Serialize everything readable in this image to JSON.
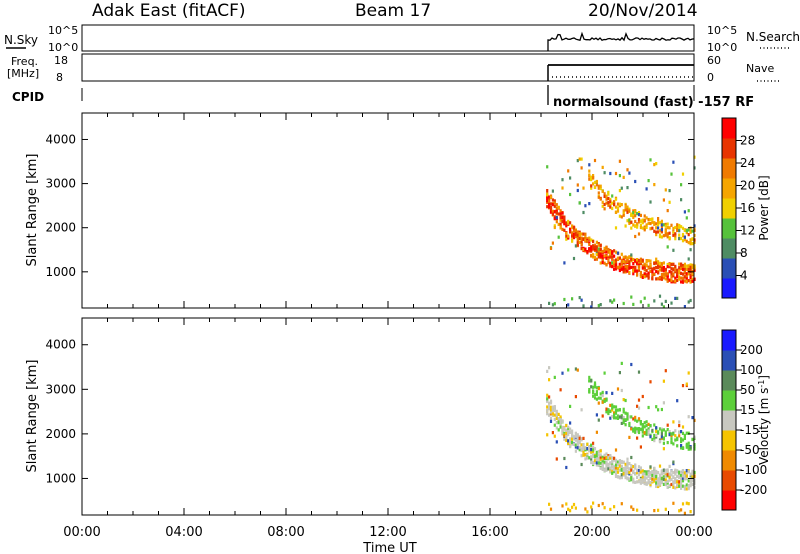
{
  "header": {
    "station": "Adak East (fitACF)",
    "beam": "Beam 17",
    "date": "20/Nov/2014"
  },
  "sky_panel": {
    "left_label": "N.Sky",
    "right_label": "N.Search",
    "left_ticks": [
      "10^5",
      "10^0"
    ],
    "right_ticks": [
      "10^5",
      "10^0"
    ]
  },
  "freq_panel": {
    "left_label_line1": "Freq.",
    "left_label_line2": "[MHz]",
    "right_label": "Nave",
    "left_ticks": [
      "18",
      "8"
    ],
    "right_ticks": [
      "60",
      "0"
    ]
  },
  "cpid": {
    "label": "CPID",
    "text": "normalsound (fast) -157 RF"
  },
  "colors": {
    "power": [
      "#1a1aff",
      "#2a4fb5",
      "#4e8c63",
      "#56c23b",
      "#f0d000",
      "#f5a500",
      "#f07a00",
      "#e83400",
      "#ff0000"
    ],
    "velocity": [
      "#1a1aff",
      "#2a4fb5",
      "#5a8a5a",
      "#5ccf3a",
      "#c8c8c0",
      "#f5c400",
      "#f08a00",
      "#e84a00",
      "#ff0000"
    ]
  },
  "chart_data": [
    {
      "type": "heatmap",
      "name": "power-panel",
      "ylabel": "Slant Range [km]",
      "yticks": [
        "1000",
        "2000",
        "3000",
        "4000"
      ],
      "yticks_values": [
        1000,
        2000,
        3000,
        4000
      ],
      "ylim": [
        180,
        4600
      ],
      "xlim": [
        0,
        24
      ],
      "colorbar_label": "Power [dB]",
      "colorbar_ticks": [
        "4",
        "8",
        "12",
        "16",
        "20",
        "24",
        "28"
      ],
      "colorbar_range": [
        0,
        32
      ],
      "data_start_hour": 18.2,
      "features": [
        {
          "band": "lower",
          "t": [
            18.2,
            19.0,
            20.0,
            21.0,
            22.0,
            23.0,
            24.0
          ],
          "range_km": [
            2600,
            1900,
            1450,
            1150,
            1000,
            920,
            900
          ],
          "power_db": 27
        },
        {
          "band": "upper",
          "t": [
            19.8,
            20.5,
            21.5,
            22.5,
            23.5,
            24.0
          ],
          "range_km": [
            3100,
            2600,
            2200,
            1950,
            1800,
            1750
          ],
          "power_db": 22
        }
      ]
    },
    {
      "type": "heatmap",
      "name": "velocity-panel",
      "ylabel": "Slant Range [km]",
      "yticks": [
        "1000",
        "2000",
        "3000",
        "4000"
      ],
      "yticks_values": [
        1000,
        2000,
        3000,
        4000
      ],
      "ylim": [
        180,
        4600
      ],
      "xlim": [
        0,
        24
      ],
      "xticks": [
        "00:00",
        "04:00",
        "08:00",
        "12:00",
        "16:00",
        "20:00",
        "00:00"
      ],
      "xticks_values": [
        0,
        4,
        8,
        12,
        16,
        20,
        24
      ],
      "xlabel": "Time UT",
      "colorbar_label": "Velocity [m s^-1]",
      "colorbar_ticks": [
        "200",
        "100",
        "50",
        "15",
        "-15",
        "-50",
        "-100",
        "-200"
      ],
      "data_start_hour": 18.2,
      "features": [
        {
          "band": "lower",
          "t": [
            18.2,
            19.0,
            20.0,
            21.0,
            22.0,
            23.0,
            24.0
          ],
          "range_km": [
            2600,
            1900,
            1450,
            1150,
            1000,
            920,
            900
          ],
          "velocity_ms": 0
        },
        {
          "band": "upper",
          "t": [
            19.8,
            20.5,
            21.5,
            22.5,
            23.5,
            24.0
          ],
          "range_km": [
            3100,
            2600,
            2200,
            1950,
            1800,
            1750
          ],
          "velocity_ms": 30
        }
      ]
    }
  ]
}
